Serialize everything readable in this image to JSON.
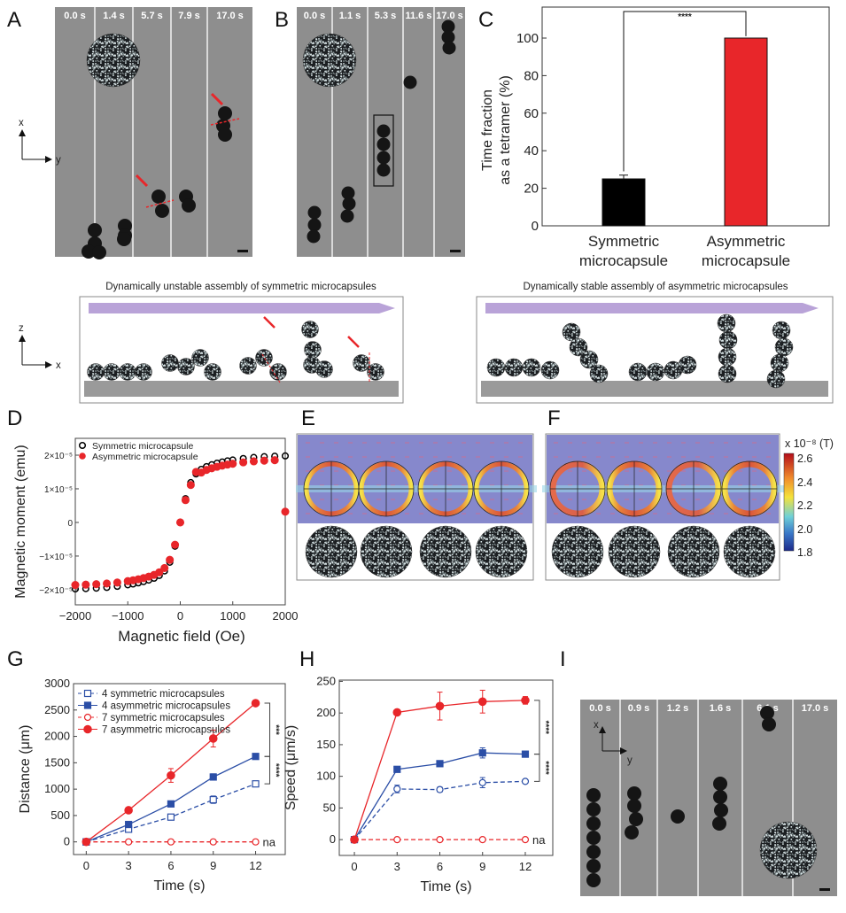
{
  "panel_labels": [
    "A",
    "B",
    "C",
    "D",
    "E",
    "F",
    "G",
    "H",
    "I"
  ],
  "panel_a": {
    "timestamps": [
      "0.0 s",
      "1.4 s",
      "5.7 s",
      "7.9 s",
      "17.0 s"
    ],
    "axis_vertical": "x",
    "axis_horizontal": "y"
  },
  "panel_b": {
    "timestamps": [
      "0.0 s",
      "1.1 s",
      "5.3 s",
      "11.6 s",
      "17.0 s"
    ]
  },
  "schematic": {
    "left_title": "Dynamically unstable assembly of symmetric microcapsules",
    "right_title": "Dynamically stable assembly of asymmetric microcapsules",
    "axis_vertical": "z",
    "axis_horizontal": "x",
    "arrow_color": "#b9a3d8"
  },
  "panel_e": {},
  "panel_f": {
    "colorbar_title": "x 10⁻⁸ (T)",
    "colorbar_ticks": [
      "2.6",
      "2.4",
      "2.2",
      "2.0",
      "1.8"
    ]
  },
  "panel_i": {
    "timestamps": [
      "0.0 s",
      "0.9 s",
      "1.2 s",
      "1.6 s",
      "6.1 s",
      "17.0 s"
    ],
    "axis_vertical": "x",
    "axis_horizontal": "y"
  },
  "colors": {
    "red": "#e8262a",
    "blue": "#2b4ea6",
    "black": "#000000",
    "image_gray": "#8e8e8e",
    "sim_purple": "#8688cc"
  },
  "chart_data": [
    {
      "id": "C",
      "type": "bar",
      "categories": [
        [
          "Symmetric",
          "microcapsule"
        ],
        [
          "Asymmetric",
          "microcapsule"
        ]
      ],
      "values": [
        25,
        100
      ],
      "errors": [
        2,
        0
      ],
      "colors": [
        "#000000",
        "#e8262a"
      ],
      "ylabel": [
        "Time fraction",
        "as a tetramer (%)"
      ],
      "ylim": [
        0,
        105
      ],
      "yticks": [
        0,
        20,
        40,
        60,
        80,
        100
      ],
      "significance": "****"
    },
    {
      "id": "D",
      "type": "scatter",
      "xlabel": "Magnetic field (Oe)",
      "ylabel": "Magnetic moment (emu)",
      "xlim": [
        -2000,
        2000
      ],
      "ylim": [
        -2.45e-05,
        2.5e-05
      ],
      "xticks": [
        -2000,
        -1000,
        0,
        1000,
        2000
      ],
      "yticks": [
        {
          "v": 2e-05,
          "label": "2×10⁻⁵"
        },
        {
          "v": 1e-05,
          "label": "1×10⁻⁵"
        },
        {
          "v": 0,
          "label": "0"
        },
        {
          "v": -1e-05,
          "label": "−1×10⁻⁵"
        },
        {
          "v": -2e-05,
          "label": "−2×10⁻⁵"
        }
      ],
      "legend_position": "top-left",
      "x": [
        -2000,
        -1800,
        -1600,
        -1400,
        -1200,
        -1000,
        -900,
        -800,
        -700,
        -600,
        -500,
        -400,
        -300,
        -200,
        -100,
        0,
        100,
        200,
        300,
        400,
        500,
        600,
        700,
        800,
        900,
        1000,
        1200,
        1400,
        1600,
        1800,
        2000
      ],
      "series": [
        {
          "name": "Symmetric microcapsule",
          "marker": "open-circle",
          "color": "#000000",
          "y": [
            -1.978e-05,
            -1.968e-05,
            -1.954e-05,
            -1.932e-05,
            -1.9e-05,
            -1.856e-05,
            -1.83e-05,
            -1.798e-05,
            -1.76e-05,
            -1.714e-05,
            -1.66e-05,
            -1.578e-05,
            -1.442e-05,
            -1.184e-05,
            -7.06e-06,
            0,
            7.06e-06,
            1.184e-05,
            1.442e-05,
            1.578e-05,
            1.66e-05,
            1.714e-05,
            1.76e-05,
            1.798e-05,
            1.83e-05,
            1.856e-05,
            1.9e-05,
            1.932e-05,
            1.954e-05,
            1.968e-05,
            1.978e-05
          ]
        },
        {
          "name": "Asymmetric microcapsule",
          "marker": "filled-circle",
          "color": "#e8262a",
          "y": [
            -1.859e-05,
            -1.85e-05,
            -1.837e-05,
            -1.816e-05,
            -1.786e-05,
            -1.745e-05,
            -1.72e-05,
            -1.69e-05,
            -1.654e-05,
            -1.611e-05,
            -1.56e-05,
            -1.483e-05,
            -1.355e-05,
            -1.113e-05,
            -6.64e-06,
            0,
            6.64e-06,
            1.113e-05,
            1.5e-05,
            1.483e-05,
            1.56e-05,
            1.611e-05,
            1.654e-05,
            1.69e-05,
            1.72e-05,
            1.745e-05,
            1.786e-05,
            1.816e-05,
            1.837e-05,
            1.85e-05,
            3.2e-06
          ]
        }
      ]
    },
    {
      "id": "G",
      "type": "line",
      "xlabel": "Time (s)",
      "ylabel": "Distance (μm)",
      "xlim": [
        -0.9,
        14.1
      ],
      "ylim": [
        -240,
        3000
      ],
      "xticks": [
        0,
        3,
        6,
        9,
        12
      ],
      "yticks": [
        0,
        500,
        1000,
        1500,
        2000,
        2500,
        3000
      ],
      "legend_position": "top-left",
      "x": [
        0,
        3,
        6,
        9,
        12
      ],
      "series": [
        {
          "name": "4 symmetric microcapsules",
          "color": "#2b4ea6",
          "dash": true,
          "marker": "open-square",
          "y": [
            0,
            240,
            470,
            800,
            1100
          ],
          "err": [
            0,
            20,
            25,
            70,
            25
          ]
        },
        {
          "name": "4 asymmetric microcapsules",
          "color": "#2b4ea6",
          "dash": false,
          "marker": "filled-square",
          "y": [
            0,
            330,
            720,
            1230,
            1620
          ],
          "err": [
            0,
            30,
            20,
            60,
            20
          ]
        },
        {
          "name": "7 symmetric microcapsules",
          "color": "#e8262a",
          "dash": true,
          "marker": "open-circle",
          "y": [
            0,
            0,
            0,
            0,
            0
          ],
          "err": [
            0,
            0,
            0,
            0,
            0
          ]
        },
        {
          "name": "7 asymmetric microcapsules",
          "color": "#e8262a",
          "dash": false,
          "marker": "filled-circle",
          "y": [
            0,
            600,
            1260,
            1960,
            2630
          ],
          "err": [
            0,
            20,
            130,
            160,
            50
          ]
        }
      ],
      "significance": [
        "***",
        "****"
      ],
      "na_label": "na"
    },
    {
      "id": "H",
      "type": "line",
      "xlabel": "Time (s)",
      "ylabel": "Speed (μm/s)",
      "xlim": [
        -1.06,
        13.93
      ],
      "ylim": [
        -25,
        252
      ],
      "xticks": [
        0,
        3,
        6,
        9,
        12
      ],
      "yticks": [
        0,
        50,
        100,
        150,
        200,
        250
      ],
      "x": [
        0,
        3,
        6,
        9,
        12
      ],
      "series": [
        {
          "color": "#2b4ea6",
          "dash": true,
          "marker": "open-circle",
          "y": [
            0,
            80,
            79,
            90,
            92
          ],
          "err": [
            0,
            6,
            4,
            8,
            2
          ]
        },
        {
          "color": "#2b4ea6",
          "dash": false,
          "marker": "filled-square",
          "y": [
            0,
            111,
            120,
            137,
            135
          ],
          "err": [
            0,
            2,
            2,
            8,
            2
          ]
        },
        {
          "color": "#e8262a",
          "dash": true,
          "marker": "open-circle",
          "y": [
            0,
            0,
            0,
            0,
            0
          ],
          "err": [
            0,
            0,
            0,
            0,
            0
          ]
        },
        {
          "color": "#e8262a",
          "dash": false,
          "marker": "filled-circle",
          "y": [
            0,
            201,
            211,
            218,
            220
          ],
          "err": [
            0,
            2,
            22,
            18,
            6
          ]
        }
      ],
      "significance": [
        "****",
        "****"
      ],
      "na_label": "na"
    }
  ]
}
